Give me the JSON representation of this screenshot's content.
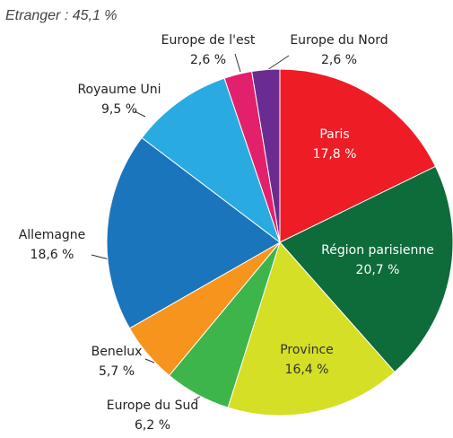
{
  "chart_data": {
    "type": "pie",
    "title": "Etranger : 45,1 %",
    "categories": [
      "Paris",
      "Région parisienne",
      "Province",
      "Europe du Sud",
      "Benelux",
      "Allemagne",
      "Royaume Uni",
      "Europe de l'est",
      "Europe du Nord"
    ],
    "values": [
      17.8,
      20.7,
      16.4,
      6.2,
      5.7,
      18.6,
      9.5,
      2.6,
      2.6
    ],
    "value_labels": [
      "17,8 %",
      "20,7 %",
      "16,4 %",
      "6,2 %",
      "5,7 %",
      "18,6 %",
      "9,5 %",
      "2,6 %",
      "2,6 %"
    ],
    "colors": [
      "#ee1c25",
      "#0e6b3a",
      "#d5df25",
      "#3db54a",
      "#f7941d",
      "#1b75bc",
      "#29abe2",
      "#e3206c",
      "#6b2c91"
    ]
  }
}
